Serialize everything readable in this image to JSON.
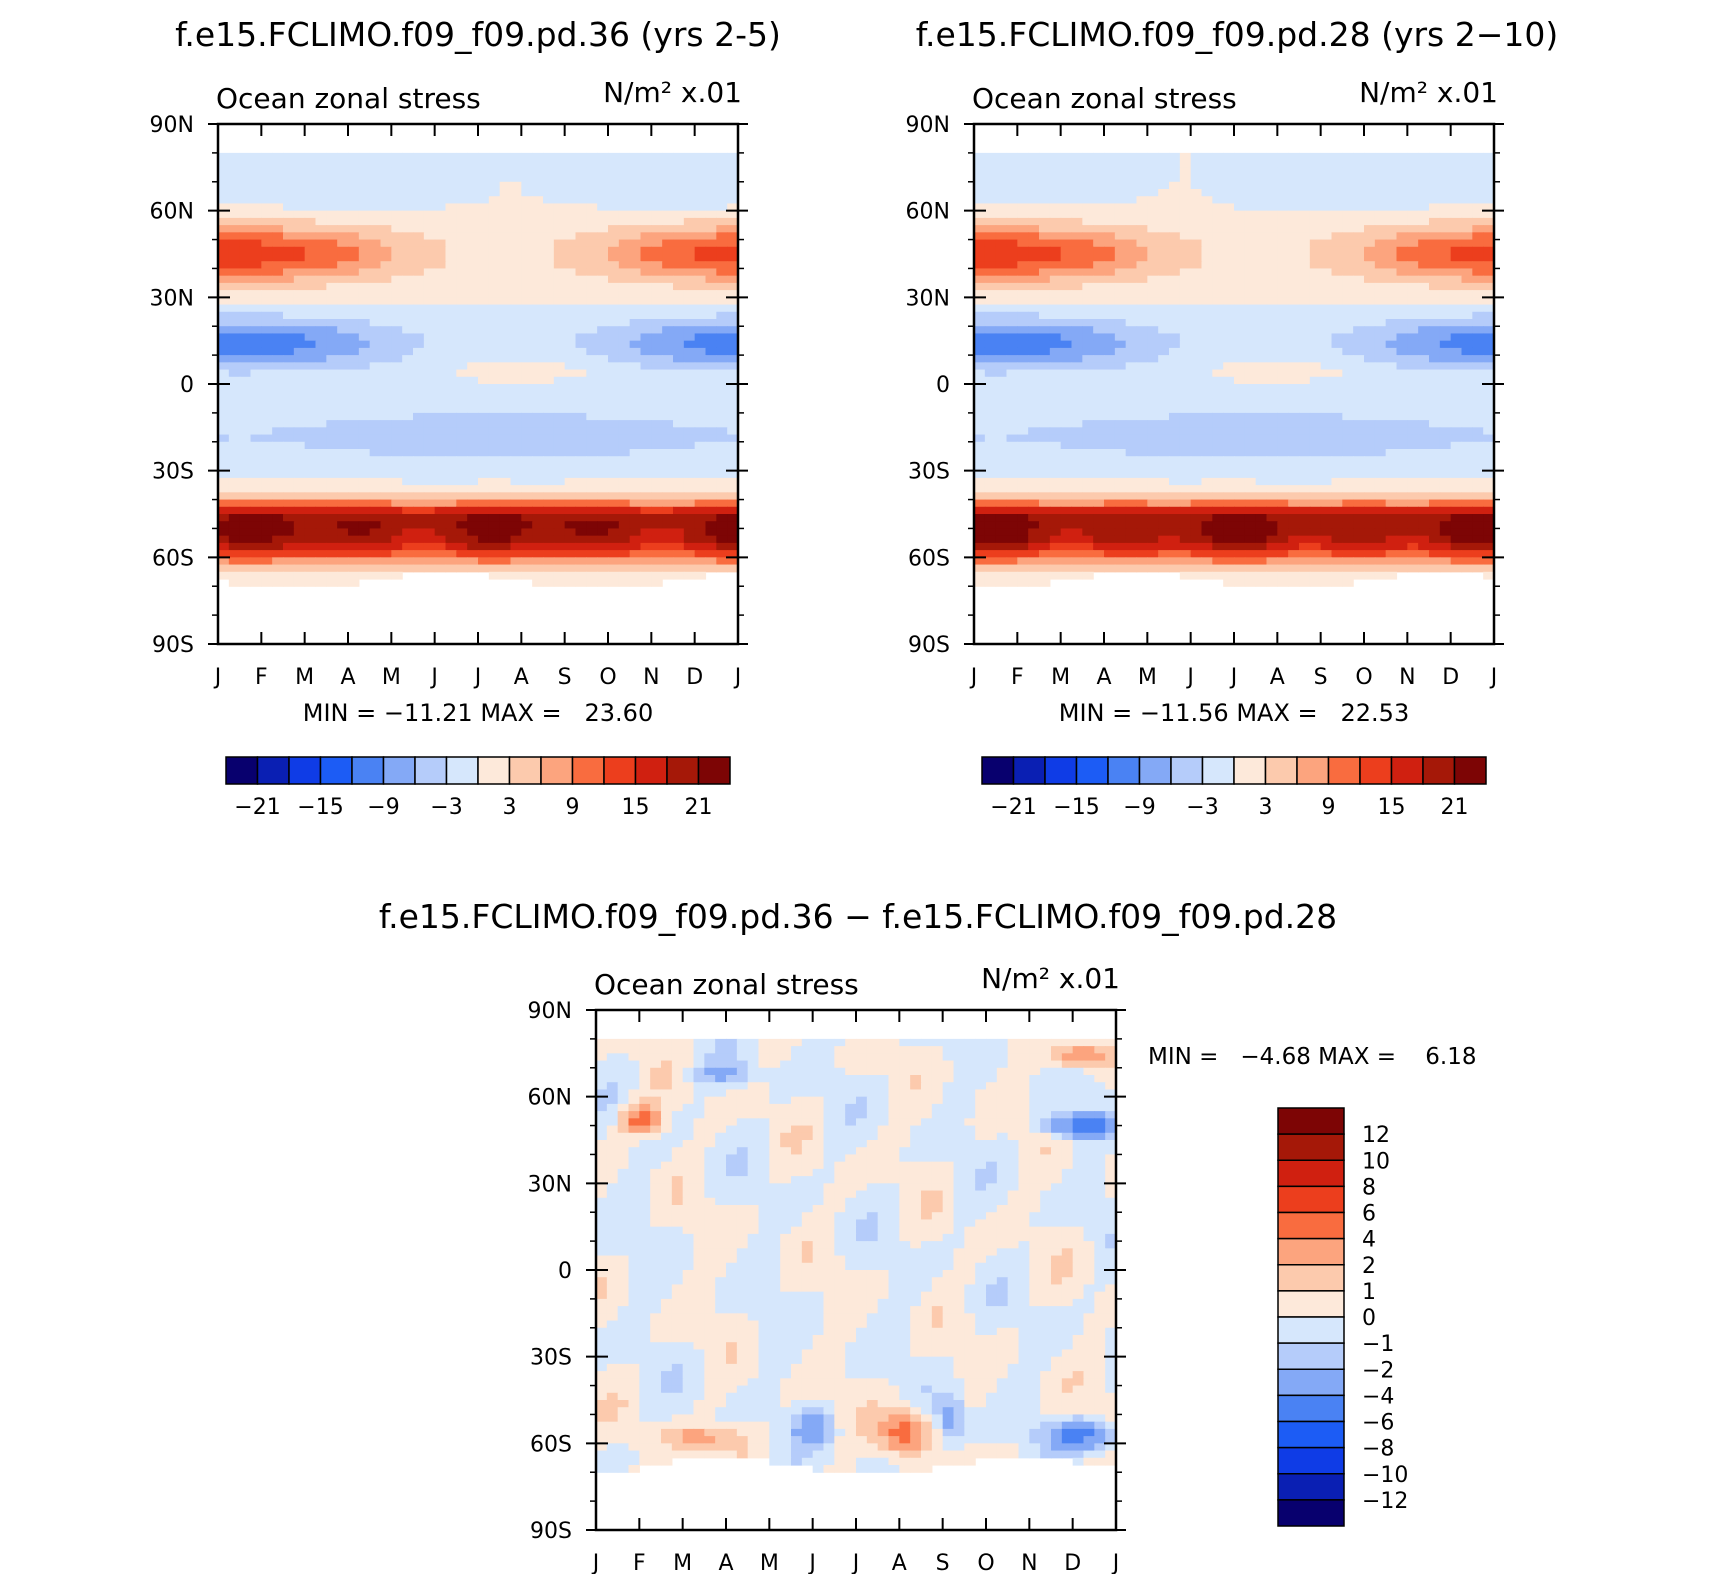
{
  "chart_data": [
    {
      "type": "heatmap",
      "title": "f.e15.FCLIMO.f09_f09.pd.36 (yrs 2-5)",
      "left_label": "Ocean zonal stress",
      "right_label": "N/m² x.01",
      "x_ticks": [
        "J",
        "F",
        "M",
        "A",
        "M",
        "J",
        "J",
        "A",
        "S",
        "O",
        "N",
        "D",
        "J"
      ],
      "y_ticks": [
        "90N",
        "60N",
        "30N",
        "0",
        "30S",
        "60S",
        "90S"
      ],
      "stats": "MIN = −11.21 MAX =   23.60",
      "colorbar": {
        "orientation": "horizontal",
        "levels": [
          -21,
          -18,
          -15,
          -12,
          -9,
          -6,
          -3,
          0,
          3,
          6,
          9,
          12,
          15,
          18,
          21
        ],
        "labels": [
          "−21",
          "−15",
          "−9",
          "−3",
          "3",
          "9",
          "15",
          "21"
        ],
        "colors": [
          "#08006e",
          "#0a1fb3",
          "#0f3ce6",
          "#1c5cf5",
          "#4a82f3",
          "#84a9f6",
          "#b5ccfa",
          "#d6e7fc",
          "#fde9da",
          "#fccaad",
          "#fca47e",
          "#f96c3f",
          "#ec3e1d",
          "#d02010",
          "#a51808",
          "#7d0505"
        ]
      }
    },
    {
      "type": "heatmap",
      "title": "f.e15.FCLIMO.f09_f09.pd.28 (yrs 2−10)",
      "left_label": "Ocean zonal stress",
      "right_label": "N/m² x.01",
      "x_ticks": [
        "J",
        "F",
        "M",
        "A",
        "M",
        "J",
        "J",
        "A",
        "S",
        "O",
        "N",
        "D",
        "J"
      ],
      "y_ticks": [
        "90N",
        "60N",
        "30N",
        "0",
        "30S",
        "60S",
        "90S"
      ],
      "stats": "MIN = −11.56 MAX =   22.53",
      "colorbar": {
        "orientation": "horizontal",
        "levels": [
          -21,
          -18,
          -15,
          -12,
          -9,
          -6,
          -3,
          0,
          3,
          6,
          9,
          12,
          15,
          18,
          21
        ],
        "labels": [
          "−21",
          "−15",
          "−9",
          "−3",
          "3",
          "9",
          "15",
          "21"
        ],
        "colors": [
          "#08006e",
          "#0a1fb3",
          "#0f3ce6",
          "#1c5cf5",
          "#4a82f3",
          "#84a9f6",
          "#b5ccfa",
          "#d6e7fc",
          "#fde9da",
          "#fccaad",
          "#fca47e",
          "#f96c3f",
          "#ec3e1d",
          "#d02010",
          "#a51808",
          "#7d0505"
        ]
      }
    },
    {
      "type": "heatmap",
      "title": "f.e15.FCLIMO.f09_f09.pd.36 − f.e15.FCLIMO.f09_f09.pd.28",
      "left_label": "Ocean zonal stress",
      "right_label": "N/m² x.01",
      "x_ticks": [
        "J",
        "F",
        "M",
        "A",
        "M",
        "J",
        "J",
        "A",
        "S",
        "O",
        "N",
        "D",
        "J"
      ],
      "y_ticks": [
        "90N",
        "60N",
        "30N",
        "0",
        "30S",
        "60S",
        "90S"
      ],
      "stats": "MIN =   −4.68 MAX =    6.18",
      "colorbar": {
        "orientation": "vertical",
        "levels": [
          12,
          10,
          8,
          6,
          4,
          2,
          1,
          0,
          -1,
          -2,
          -4,
          -6,
          -8,
          -10,
          -12
        ],
        "labels": [
          "12",
          "10",
          "8",
          "6",
          "4",
          "2",
          "1",
          "0",
          "−1",
          "−2",
          "−4",
          "−6",
          "−8",
          "−10",
          "−12"
        ],
        "colors": [
          "#7d0505",
          "#a51808",
          "#d02010",
          "#ec3e1d",
          "#f96c3f",
          "#fca47e",
          "#fccaad",
          "#fde9da",
          "#d6e7fc",
          "#b5ccfa",
          "#84a9f6",
          "#4a82f3",
          "#1c5cf5",
          "#0f3ce6",
          "#0a1fb3",
          "#08006e"
        ]
      }
    }
  ]
}
